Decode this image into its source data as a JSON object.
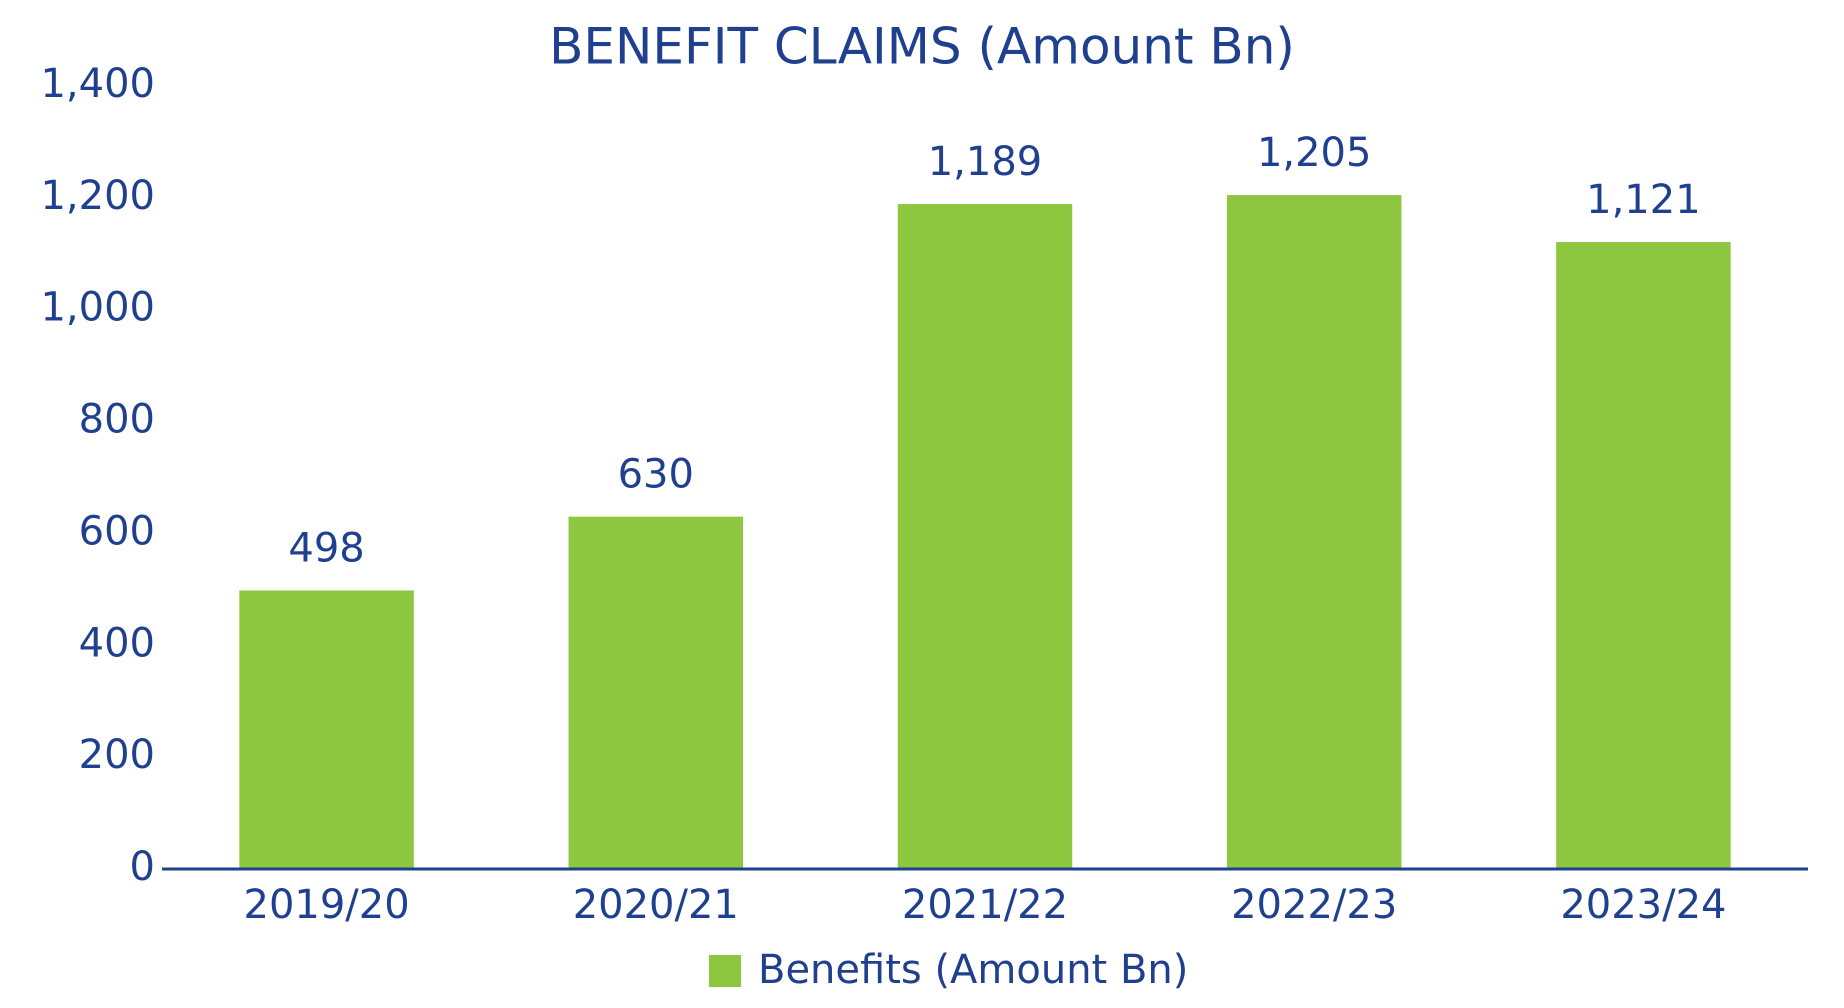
{
  "chart_data": {
    "type": "bar",
    "title": "BENEFIT CLAIMS (Amount Bn)",
    "categories": [
      "2019/20",
      "2020/21",
      "2021/22",
      "2022/23",
      "2023/24"
    ],
    "series": [
      {
        "name": "Benefits (Amount Bn)",
        "color": "#8dc63f",
        "values": [
          498,
          630,
          1189,
          1205,
          1121
        ],
        "value_labels": [
          "498",
          "630",
          "1,189",
          "1,205",
          "1,121"
        ]
      }
    ],
    "ylim": [
      0,
      1400
    ],
    "yticks": [
      0,
      200,
      400,
      600,
      800,
      {
        "value": 1000,
        "label": "1,000"
      },
      {
        "value": 1200,
        "label": "1,200"
      },
      {
        "value": 1400,
        "label": "1,400"
      }
    ],
    "grid": false,
    "legend": "bottom"
  }
}
